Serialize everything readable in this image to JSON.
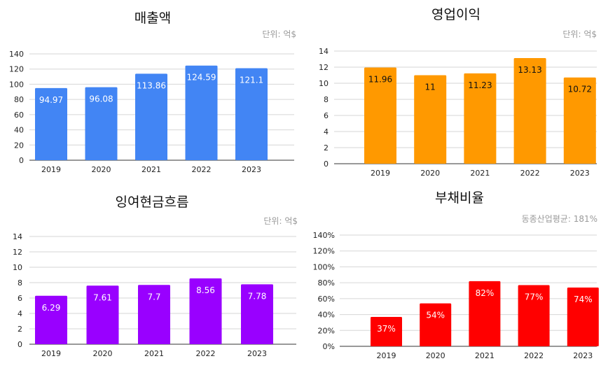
{
  "chart_data": [
    {
      "type": "bar",
      "title": "매출액",
      "unit": "단위: 억$",
      "categories": [
        "2019",
        "2020",
        "2021",
        "2022",
        "2023"
      ],
      "values": [
        94.97,
        96.08,
        113.86,
        124.59,
        121.1
      ],
      "value_labels": [
        "94.97",
        "96.08",
        "113.86",
        "124.59",
        "121.1"
      ],
      "y_ticks": [
        "0",
        "20",
        "40",
        "60",
        "80",
        "100",
        "120",
        "140"
      ],
      "ylim": [
        0,
        140
      ],
      "color": "#4285f4",
      "label_color": "#ffffff",
      "xlabel": "",
      "ylabel": "",
      "grid": true
    },
    {
      "type": "bar",
      "title": "영업이익",
      "unit": "단위: 억$",
      "categories": [
        "2019",
        "2020",
        "2021",
        "2022",
        "2023"
      ],
      "values": [
        11.96,
        11,
        11.23,
        13.13,
        10.72
      ],
      "value_labels": [
        "11.96",
        "11",
        "11.23",
        "13.13",
        "10.72"
      ],
      "y_ticks": [
        "0",
        "2",
        "4",
        "6",
        "8",
        "10",
        "12",
        "14"
      ],
      "ylim": [
        0,
        14
      ],
      "color": "#ff9900",
      "label_color": "#111111",
      "xlabel": "",
      "ylabel": "",
      "grid": true
    },
    {
      "type": "bar",
      "title": "잉여현금흐름",
      "unit": "단위: 억$",
      "categories": [
        "2019",
        "2020",
        "2021",
        "2022",
        "2023"
      ],
      "values": [
        6.29,
        7.61,
        7.7,
        8.56,
        7.78
      ],
      "value_labels": [
        "6.29",
        "7.61",
        "7.7",
        "8.56",
        "7.78"
      ],
      "y_ticks": [
        "0",
        "2",
        "4",
        "6",
        "8",
        "10",
        "12",
        "14"
      ],
      "ylim": [
        0,
        14
      ],
      "color": "#9900ff",
      "label_color": "#ffffff",
      "xlabel": "",
      "ylabel": "",
      "grid": true
    },
    {
      "type": "bar",
      "title": "부채비율",
      "unit": "동종산업평균: 181%",
      "categories": [
        "2019",
        "2020",
        "2021",
        "2022",
        "2023"
      ],
      "values": [
        37,
        54,
        82,
        77,
        74
      ],
      "value_labels": [
        "37%",
        "54%",
        "82%",
        "77%",
        "74%"
      ],
      "y_ticks": [
        "0%",
        "20%",
        "40%",
        "60%",
        "80%",
        "100%",
        "120%",
        "140%"
      ],
      "ylim": [
        0,
        140
      ],
      "color": "#ff0000",
      "label_color": "#ffffff",
      "xlabel": "",
      "ylabel": "",
      "grid": true
    }
  ]
}
